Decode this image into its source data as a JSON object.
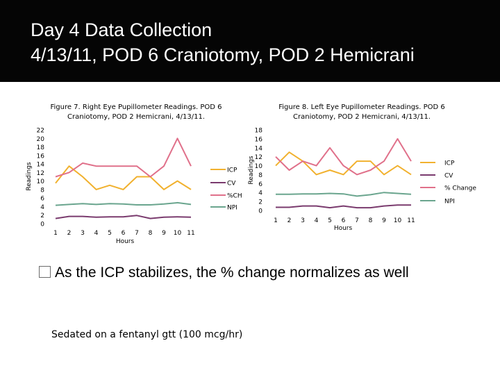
{
  "slide": {
    "title_line1": "Day 4 Data Collection",
    "title_line2": "4/13/11, POD 6 Craniotomy, POD 2 Hemicrani",
    "bullet": "As the ICP stabilizes, the % change normalizes as well",
    "note": "Sedated on a fentanyl gtt (100 mcg/hr)"
  },
  "colors": {
    "ICP": "#f1b12e",
    "CV": "#7a3b6e",
    "pct_change": "#e0708a",
    "NPI": "#6aa58e"
  },
  "chart_data": [
    {
      "type": "line",
      "title_line1": "Figure 7. Right Eye Pupillometer Readings. POD 6",
      "title_line2": "Craniotomy, POD 2 Hemicrani, 4/13/11.",
      "ylabel": "Readings",
      "xlabel": "Hours",
      "x": [
        "1",
        "2",
        "3",
        "4",
        "5",
        "6",
        "7",
        "8",
        "9",
        "10",
        "11"
      ],
      "ylim": [
        0,
        22
      ],
      "yticks": [
        "0",
        "2",
        "4",
        "6",
        "8",
        "10",
        "12",
        "14",
        "16",
        "18",
        "20",
        "22"
      ],
      "legend_position": "right",
      "series": [
        {
          "name": "ICP",
          "color_key": "ICP",
          "values": [
            9.5,
            13.5,
            11,
            8,
            9,
            8,
            11,
            11,
            8,
            10,
            8
          ]
        },
        {
          "name": "CV",
          "color_key": "CV",
          "values": [
            1.2,
            1.7,
            1.7,
            1.5,
            1.6,
            1.6,
            1.9,
            1.2,
            1.5,
            1.6,
            1.5
          ]
        },
        {
          "name": "%CH",
          "color_key": "pct_change",
          "values": [
            11,
            12,
            14.2,
            13.5,
            13.5,
            13.5,
            13.5,
            11,
            13.5,
            20,
            13.5
          ]
        },
        {
          "name": "NPI",
          "color_key": "NPI",
          "values": [
            4.3,
            4.5,
            4.7,
            4.5,
            4.7,
            4.6,
            4.4,
            4.4,
            4.6,
            4.9,
            4.5
          ]
        }
      ]
    },
    {
      "type": "line",
      "title_line1": "Figure 8. Left Eye Pupillometer Readings. POD 6",
      "title_line2": "Craniotomy, POD 2 Hemicrani, 4/13/11.",
      "ylabel": "Readings",
      "xlabel": "Hours",
      "x": [
        "1",
        "2",
        "3",
        "4",
        "5",
        "6",
        "7",
        "8",
        "9",
        "10",
        "11"
      ],
      "ylim": [
        0,
        18
      ],
      "yticks": [
        "0",
        "2",
        "4",
        "6",
        "8",
        "10",
        "12",
        "14",
        "16",
        "18"
      ],
      "legend_position": "right",
      "series": [
        {
          "name": "ICP",
          "color_key": "ICP",
          "values": [
            10,
            13,
            11,
            8,
            9,
            8,
            11,
            11,
            8,
            10,
            8
          ]
        },
        {
          "name": "CV",
          "color_key": "CV",
          "values": [
            0.7,
            0.7,
            1,
            1,
            0.6,
            1,
            0.6,
            0.6,
            1,
            1.2,
            1.2
          ]
        },
        {
          "name": "% Change",
          "color_key": "pct_change",
          "values": [
            12,
            9,
            11,
            10,
            14,
            10,
            8,
            9,
            11,
            16,
            11
          ]
        },
        {
          "name": "NPI",
          "color_key": "NPI",
          "values": [
            3.6,
            3.6,
            3.7,
            3.7,
            3.8,
            3.7,
            3.2,
            3.5,
            4,
            3.8,
            3.6
          ]
        }
      ]
    }
  ]
}
